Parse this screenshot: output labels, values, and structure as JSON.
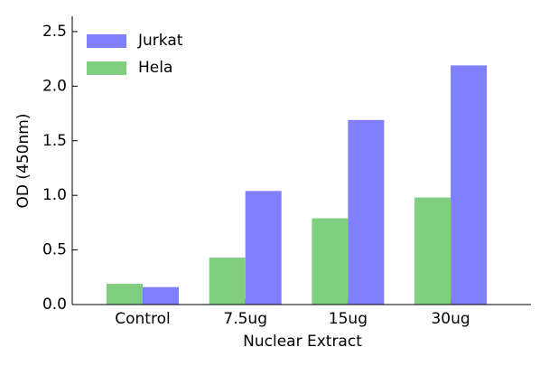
{
  "chart_data": {
    "type": "bar",
    "x_label": "Nuclear Extract",
    "y_label": "OD (450nm)",
    "categories": [
      "Control",
      "7.5ug",
      "15ug",
      "30ug"
    ],
    "series": [
      {
        "name": "Jurkat",
        "color": "#7f7fff",
        "values": [
          0.16,
          1.04,
          1.69,
          2.19
        ]
      },
      {
        "name": "Hela",
        "color": "#7fcf7f",
        "values": [
          0.19,
          0.43,
          0.79,
          0.98
        ]
      }
    ],
    "ylim": [
      0,
      2.64
    ],
    "yticks": [
      {
        "value": 0,
        "label": "0.0"
      },
      0.5,
      {
        "value": 1,
        "label": "1.0"
      },
      1.5,
      {
        "value": 2,
        "label": "2.0"
      },
      2.5
    ],
    "legend": "upper left"
  }
}
